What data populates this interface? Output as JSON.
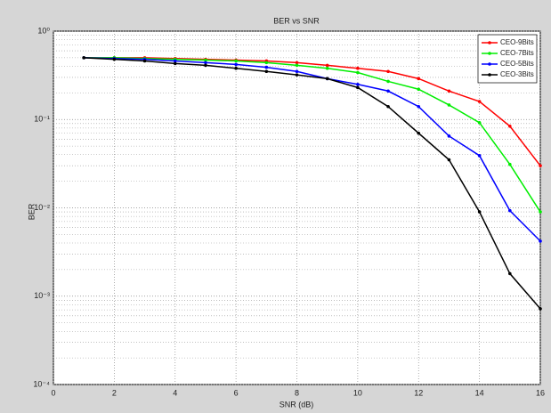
{
  "chart_data": {
    "type": "line",
    "title": "BER vs SNR",
    "xlabel": "SNR (dB)",
    "ylabel": "BER",
    "x": [
      1,
      2,
      3,
      4,
      5,
      6,
      7,
      8,
      9,
      10,
      11,
      12,
      13,
      14,
      15,
      16
    ],
    "series": [
      {
        "name": "CEO-9Bits",
        "color": "#ff0000",
        "values": [
          0.5,
          0.5,
          0.5,
          0.49,
          0.48,
          0.47,
          0.46,
          0.44,
          0.41,
          0.38,
          0.35,
          0.29,
          0.21,
          0.16,
          0.084,
          0.03
        ]
      },
      {
        "name": "CEO-7Bits",
        "color": "#00ee00",
        "values": [
          0.5,
          0.5,
          0.49,
          0.48,
          0.47,
          0.46,
          0.44,
          0.41,
          0.38,
          0.34,
          0.27,
          0.22,
          0.146,
          0.092,
          0.031,
          0.009
        ]
      },
      {
        "name": "CEO-5Bits",
        "color": "#0000ff",
        "values": [
          0.5,
          0.49,
          0.48,
          0.46,
          0.44,
          0.42,
          0.39,
          0.35,
          0.29,
          0.25,
          0.21,
          0.14,
          0.065,
          0.039,
          0.0093,
          0.0042
        ]
      },
      {
        "name": "CEO-3Bits",
        "color": "#000000",
        "values": [
          0.5,
          0.48,
          0.46,
          0.43,
          0.41,
          0.38,
          0.35,
          0.32,
          0.29,
          0.23,
          0.14,
          0.07,
          0.035,
          0.009,
          0.0018,
          0.00072
        ]
      }
    ],
    "xlim": [
      0,
      16
    ],
    "xticks": [
      0,
      2,
      4,
      6,
      8,
      10,
      12,
      14,
      16
    ],
    "ylim": [
      0.0001,
      1
    ],
    "log_y": true,
    "yticks": [
      {
        "value": 0.0001,
        "label": "10⁻⁴"
      },
      {
        "value": 0.001,
        "label": "10⁻³"
      },
      {
        "value": 0.01,
        "label": "10⁻²"
      },
      {
        "value": 0.1,
        "label": "10⁻¹"
      },
      {
        "value": 1,
        "label": "10⁰"
      }
    ],
    "grid": true,
    "legend": "northeast"
  }
}
